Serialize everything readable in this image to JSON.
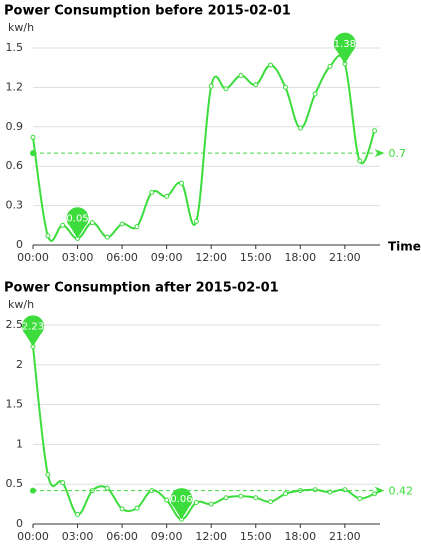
{
  "chart_data": [
    {
      "type": "line",
      "title": "Power Consumption before 2015-02-01",
      "y_label": "kw/h",
      "x_label": "Time",
      "categories": [
        "00:00",
        null,
        null,
        "03:00",
        null,
        null,
        "06:00",
        null,
        null,
        "09:00",
        null,
        null,
        "12:00",
        null,
        null,
        "15:00",
        null,
        null,
        "18:00",
        null,
        null,
        "21:00",
        null,
        null
      ],
      "series": [
        {
          "name": "kw/h",
          "color": "#3ddc3d",
          "values": [
            0.82,
            0.07,
            0.15,
            0.05,
            0.17,
            0.06,
            0.16,
            0.14,
            0.4,
            0.37,
            0.47,
            0.18,
            1.21,
            1.19,
            1.29,
            1.22,
            1.37,
            1.2,
            0.89,
            1.15,
            1.36,
            1.38,
            0.64,
            0.87
          ]
        }
      ],
      "ylim": [
        0,
        1.5
      ],
      "yticks": [
        0,
        0.3,
        0.6,
        0.9,
        1.2,
        1.5
      ],
      "grid": true,
      "smooth": true,
      "mark_points": [
        "max",
        "min"
      ],
      "mark_line": 0.7
    },
    {
      "type": "line",
      "title": "Power Consumption after 2015-02-01",
      "y_label": "kw/h",
      "categories": [
        "00:00",
        null,
        null,
        "03:00",
        null,
        null,
        "06:00",
        null,
        null,
        "09:00",
        null,
        null,
        "12:00",
        null,
        null,
        "15:00",
        null,
        null,
        "18:00",
        null,
        null,
        "21:00",
        null,
        null
      ],
      "series": [
        {
          "name": "kw/h",
          "color": "#3ddc3d",
          "values": [
            2.23,
            0.62,
            0.52,
            0.12,
            0.42,
            0.45,
            0.19,
            0.2,
            0.42,
            0.3,
            0.06,
            0.27,
            0.25,
            0.33,
            0.35,
            0.33,
            0.28,
            0.38,
            0.42,
            0.43,
            0.4,
            0.43,
            0.32,
            0.38
          ]
        }
      ],
      "ylim": [
        0,
        2.5
      ],
      "yticks": [
        0,
        0.5,
        1,
        1.5,
        2,
        2.5
      ],
      "grid": true,
      "smooth": true,
      "mark_points": [
        "max",
        "min"
      ],
      "mark_line": 0.42
    }
  ]
}
